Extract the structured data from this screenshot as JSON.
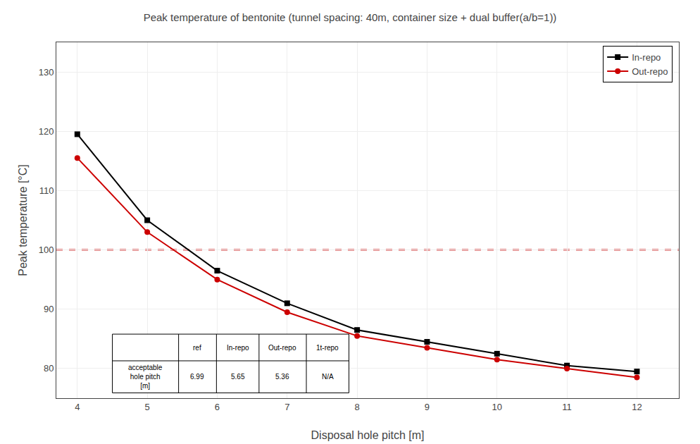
{
  "chart_data": {
    "type": "line",
    "title": "Peak temperature of bentonite (tunnel spacing: 40m, container size + dual buffer(a/b=1))",
    "x_label": "Disposal hole pitch [m]",
    "y_label": "Peak temperature [°C]",
    "x": [
      4,
      5,
      6,
      7,
      8,
      9,
      10,
      11,
      12
    ],
    "series": [
      {
        "name": "In-repo",
        "color": "#000000",
        "marker": "square",
        "values": [
          119.5,
          105.0,
          96.5,
          91.0,
          86.5,
          84.5,
          82.5,
          80.5,
          79.5
        ]
      },
      {
        "name": "Out-repo",
        "color": "#cc0000",
        "marker": "circle",
        "values": [
          115.5,
          103.0,
          95.0,
          89.5,
          85.5,
          83.5,
          81.5,
          80.0,
          78.5
        ]
      }
    ],
    "hlines": [
      {
        "y": 100,
        "color": "#cc0000",
        "line_style": "dashed"
      }
    ],
    "xlim": [
      3.7,
      12.6
    ],
    "ylim": [
      75,
      135
    ],
    "xticks": [
      4,
      5,
      6,
      7,
      8,
      9,
      10,
      11,
      12
    ],
    "yticks": [
      80,
      90,
      100,
      110,
      120,
      130
    ],
    "grid": true,
    "legend": "upper right",
    "table": {
      "header": [
        "ref",
        "In-repo",
        "Out-repo",
        "1t-repo"
      ],
      "rows": [
        {
          "label": "acceptable\nhole pitch\n[m]",
          "values": [
            "6.99",
            "5.65",
            "5.36",
            "N/A"
          ]
        }
      ]
    }
  }
}
